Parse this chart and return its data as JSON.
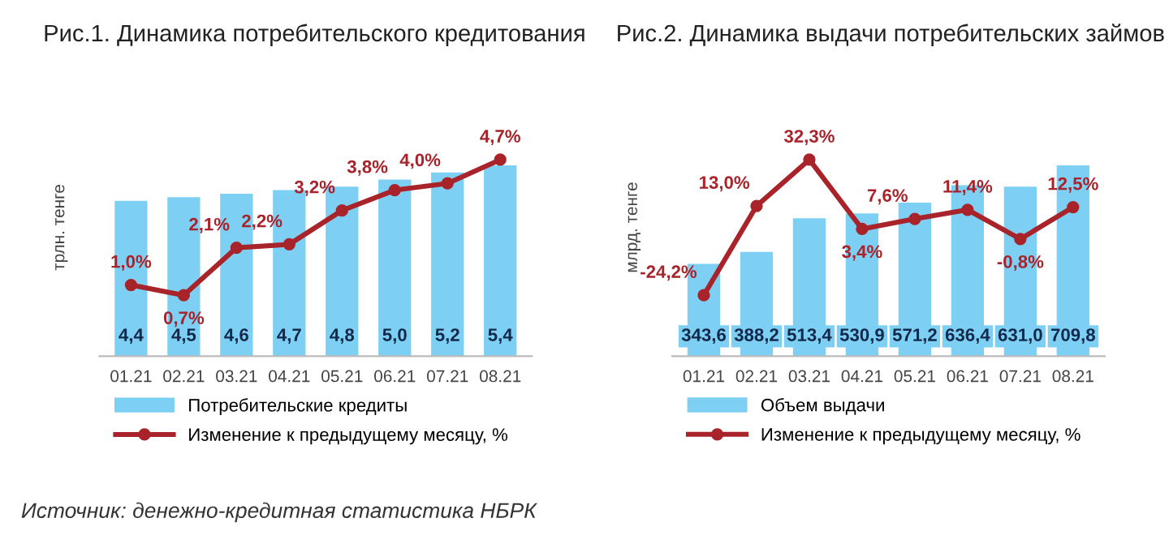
{
  "chart_data": [
    {
      "type": "bar",
      "title": "Рис.1. Динамика потребительского кредитования",
      "ylabel": "трлн. тенге",
      "categories": [
        "01.21",
        "02.21",
        "03.21",
        "04.21",
        "05.21",
        "06.21",
        "07.21",
        "08.21"
      ],
      "series": [
        {
          "name": "Потребительские кредиты",
          "type": "bar",
          "color": "#7dd0f3",
          "values": [
            4.4,
            4.5,
            4.6,
            4.7,
            4.8,
            5.0,
            5.2,
            5.4
          ],
          "value_labels": [
            "4,4",
            "4,5",
            "4,6",
            "4,7",
            "4,8",
            "5,0",
            "5,2",
            "5,4"
          ]
        },
        {
          "name": "Изменение к предыдущему месяцу, %",
          "type": "line",
          "axis": "y2",
          "color": "#a8232a",
          "values": [
            1.0,
            0.7,
            2.1,
            2.2,
            3.2,
            3.8,
            4.0,
            4.7
          ],
          "value_labels": [
            "1,0%",
            "0,7%",
            "2,1%",
            "2,2%",
            "3,2%",
            "3,8%",
            "4,0%",
            "4,7%"
          ]
        }
      ],
      "legend": "bottom",
      "grid": false,
      "marker": "circle",
      "line_style": "solid",
      "annotations": [
        "Источник: денежно-кредитная статистика НБРК"
      ]
    },
    {
      "type": "bar",
      "title": "Рис.2. Динамика выдачи потребительских займов",
      "ylabel": "млрд. тенге",
      "categories": [
        "01.21",
        "02.21",
        "03.21",
        "04.21",
        "05.21",
        "06.21",
        "07.21",
        "08.21"
      ],
      "series": [
        {
          "name": "Объем выдачи",
          "type": "bar",
          "color": "#7dd0f3",
          "values": [
            343.6,
            388.2,
            513.4,
            530.9,
            571.2,
            636.4,
            631.0,
            709.8
          ],
          "value_labels": [
            "343,6",
            "388,2",
            "513,4",
            "530,9",
            "571,2",
            "636,4",
            "631,0",
            "709,8"
          ]
        },
        {
          "name": "Изменение к предыдущему месяцу, %",
          "type": "line",
          "axis": "y2",
          "color": "#a8232a",
          "values": [
            -24.2,
            13.0,
            32.3,
            3.4,
            7.6,
            11.4,
            -0.8,
            12.5
          ],
          "value_labels": [
            "-24,2%",
            "13,0%",
            "32,3%",
            "3,4%",
            "7,6%",
            "11,4%",
            "-0,8%",
            "12,5%"
          ]
        }
      ],
      "legend": "bottom",
      "grid": false,
      "marker": "circle",
      "line_style": "solid"
    }
  ]
}
